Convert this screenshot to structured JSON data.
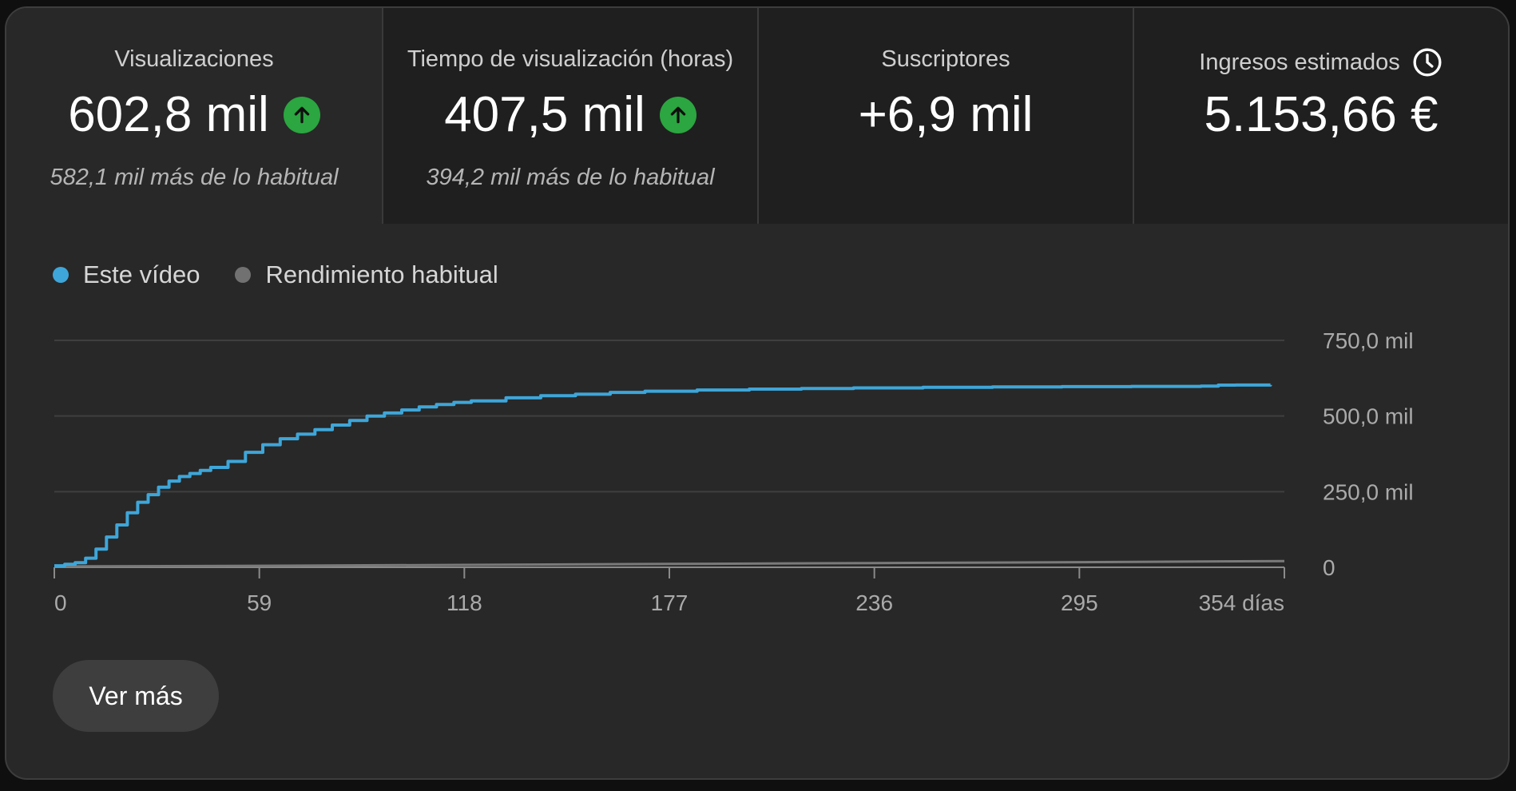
{
  "metrics": [
    {
      "title": "Visualizaciones",
      "value": "602,8 mil",
      "sub": "582,1 mil más de lo habitual",
      "trend_icon": "arrow-up-icon",
      "selected": true
    },
    {
      "title": "Tiempo de visualización (horas)",
      "value": "407,5 mil",
      "sub": "394,2 mil más de lo habitual",
      "trend_icon": "arrow-up-icon",
      "selected": false
    },
    {
      "title": "Suscriptores",
      "value": "+6,9 mil",
      "sub": "",
      "selected": false
    },
    {
      "title": "Ingresos estimados",
      "value": "5.153,66 €",
      "sub": "",
      "title_icon": "clock-icon",
      "selected": false
    }
  ],
  "legend": [
    {
      "label": "Este vídeo",
      "color": "#3ea6d9"
    },
    {
      "label": "Rendimiento habitual",
      "color": "#717171"
    }
  ],
  "colors": {
    "accent": "#3ea6d9",
    "trend_up": "#2ba640",
    "typical": "#7a7a7a",
    "grid": "#3f3f3f"
  },
  "chart_data": {
    "type": "line",
    "xlim": [
      0,
      354
    ],
    "ylim": [
      0,
      750000
    ],
    "x_ticks": [
      0,
      59,
      118,
      177,
      236,
      295,
      354
    ],
    "x_tick_labels": [
      "0",
      "59",
      "118",
      "177",
      "236",
      "295",
      "354 días"
    ],
    "y_ticks": [
      0,
      250000,
      500000,
      750000
    ],
    "y_tick_labels": [
      "0",
      "250,0 mil",
      "500,0 mil",
      "750,0 mil"
    ],
    "grid": true,
    "legend_position": "top-left",
    "series": [
      {
        "name": "Este vídeo",
        "x": [
          0,
          3,
          6,
          9,
          12,
          15,
          18,
          21,
          24,
          27,
          30,
          33,
          36,
          39,
          42,
          45,
          50,
          55,
          60,
          65,
          70,
          75,
          80,
          85,
          90,
          95,
          100,
          105,
          110,
          115,
          120,
          130,
          140,
          150,
          160,
          170,
          185,
          200,
          215,
          230,
          250,
          270,
          290,
          310,
          330,
          335,
          340,
          350
        ],
        "y": [
          5000,
          10000,
          15000,
          30000,
          60000,
          100000,
          140000,
          180000,
          215000,
          240000,
          265000,
          285000,
          300000,
          310000,
          320000,
          330000,
          350000,
          380000,
          405000,
          425000,
          440000,
          455000,
          470000,
          485000,
          500000,
          510000,
          520000,
          530000,
          538000,
          545000,
          550000,
          560000,
          567000,
          572000,
          578000,
          582000,
          586000,
          589000,
          591000,
          593000,
          595000,
          596000,
          597000,
          598000,
          599000,
          602000,
          602500,
          602800
        ]
      },
      {
        "name": "Rendimiento habitual",
        "x": [
          0,
          59,
          118,
          177,
          236,
          295,
          354
        ],
        "y": [
          3000,
          5000,
          8000,
          11000,
          14000,
          17000,
          20500
        ]
      }
    ]
  },
  "buttons": {
    "more": "Ver más"
  }
}
